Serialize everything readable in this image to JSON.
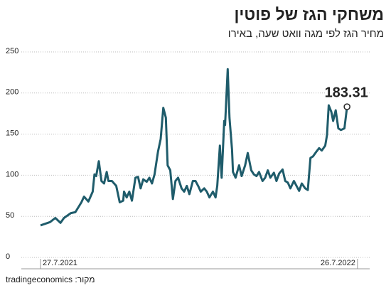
{
  "chart_data": {
    "type": "line",
    "title": "משחקי הגז של פוטין",
    "subtitle": "מחיר הגז לפי מגה וואט שעה, באירו",
    "source": "מקור: tradingeconomics",
    "x": [
      0,
      11,
      17,
      23,
      27,
      35,
      40,
      47,
      50,
      55,
      60,
      62,
      64,
      67,
      70,
      73,
      76,
      78,
      82,
      87,
      91,
      95,
      96,
      99,
      102,
      105,
      109,
      112,
      115,
      118,
      122,
      125,
      128,
      131,
      135,
      138,
      141,
      144,
      146,
      149,
      152,
      155,
      158,
      162,
      165,
      168,
      171,
      175,
      178,
      181,
      184,
      188,
      191,
      194,
      198,
      201,
      203,
      206,
      208,
      211,
      212,
      215,
      217,
      220,
      221,
      224,
      228,
      231,
      235,
      238,
      242,
      245,
      248,
      251,
      255,
      258,
      261,
      264,
      268,
      271,
      274,
      278,
      281,
      284,
      287,
      291,
      294,
      297,
      300,
      304,
      307,
      310,
      313,
      317,
      320,
      323,
      327,
      329,
      331,
      334,
      336,
      339,
      342,
      345,
      349,
      352
    ],
    "series": [
      {
        "color": "#1f5c6b",
        "values": [
          39,
          43,
          48,
          42,
          48,
          54,
          55,
          67,
          74,
          68,
          80,
          101,
          99,
          117,
          93,
          90,
          104,
          93,
          93,
          87,
          67,
          69,
          80,
          73,
          80,
          69,
          97,
          98,
          84,
          95,
          92,
          97,
          90,
          101,
          129,
          144,
          182,
          170,
          112,
          106,
          71,
          93,
          97,
          84,
          80,
          87,
          77,
          93,
          93,
          87,
          80,
          84,
          80,
          73,
          80,
          73,
          87,
          136,
          97,
          166,
          161,
          229,
          170,
          131,
          104,
          97,
          112,
          99,
          112,
          127,
          106,
          101,
          99,
          104,
          93,
          97,
          106,
          97,
          103,
          93,
          102,
          107,
          93,
          91,
          84,
          93,
          87,
          81,
          90,
          84,
          82,
          121,
          123,
          129,
          133,
          130,
          136,
          149,
          185,
          177,
          166,
          179,
          157,
          155,
          157,
          183.31
        ]
      }
    ],
    "xlim": [
      -22,
      378
    ],
    "xticks": [
      {
        "value": 0,
        "label": "27.7.2021"
      },
      {
        "value": 364,
        "label": "26.7.2022"
      }
    ],
    "ylim": [
      0,
      250
    ],
    "yticks": [
      0,
      50,
      100,
      150,
      200,
      250
    ],
    "grid": true
  }
}
